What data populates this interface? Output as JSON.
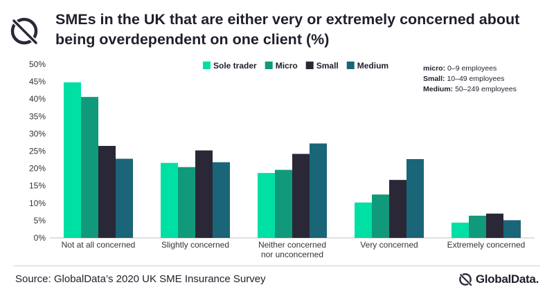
{
  "title_lines": [
    "SMEs in the UK that are either very or extremely concerned about",
    "being overdependent on one client (%)"
  ],
  "notes": [
    {
      "term": "micro:",
      "desc": "0–9 employees"
    },
    {
      "term": "Small:",
      "desc": "10–49 employees"
    },
    {
      "term": "Medium:",
      "desc": "50–249 employees"
    }
  ],
  "source": "Source: GlobalData’s 2020 UK SME Insurance Survey",
  "brand": {
    "name": "GlobalData.",
    "logo_icon": "globaldata-logo-icon"
  },
  "chart_data": {
    "type": "bar",
    "categories": [
      [
        "Not at all concerned"
      ],
      [
        "Slightly concerned"
      ],
      [
        "Neither concerned",
        "nor unconcerned"
      ],
      [
        "Very concerned"
      ],
      [
        "Extremely concerned"
      ]
    ],
    "series": [
      {
        "name": "Sole trader",
        "color": "#00e0a4",
        "values": [
          44.8,
          21.6,
          18.7,
          10.2,
          4.4
        ]
      },
      {
        "name": "Micro",
        "color": "#10997a",
        "values": [
          40.6,
          20.4,
          19.6,
          12.5,
          6.4
        ]
      },
      {
        "name": "Small",
        "color": "#2a2837",
        "values": [
          26.5,
          25.2,
          24.2,
          16.7,
          7.0
        ]
      },
      {
        "name": "Medium",
        "color": "#1a6578",
        "values": [
          22.8,
          21.8,
          27.2,
          22.7,
          5.1
        ]
      }
    ],
    "ylim": [
      0,
      50
    ],
    "yticks": [
      "0%",
      "5%",
      "10%",
      "15%",
      "20%",
      "25%",
      "30%",
      "35%",
      "40%",
      "45%",
      "50%"
    ],
    "grid": false,
    "legend_position": "top-center"
  }
}
